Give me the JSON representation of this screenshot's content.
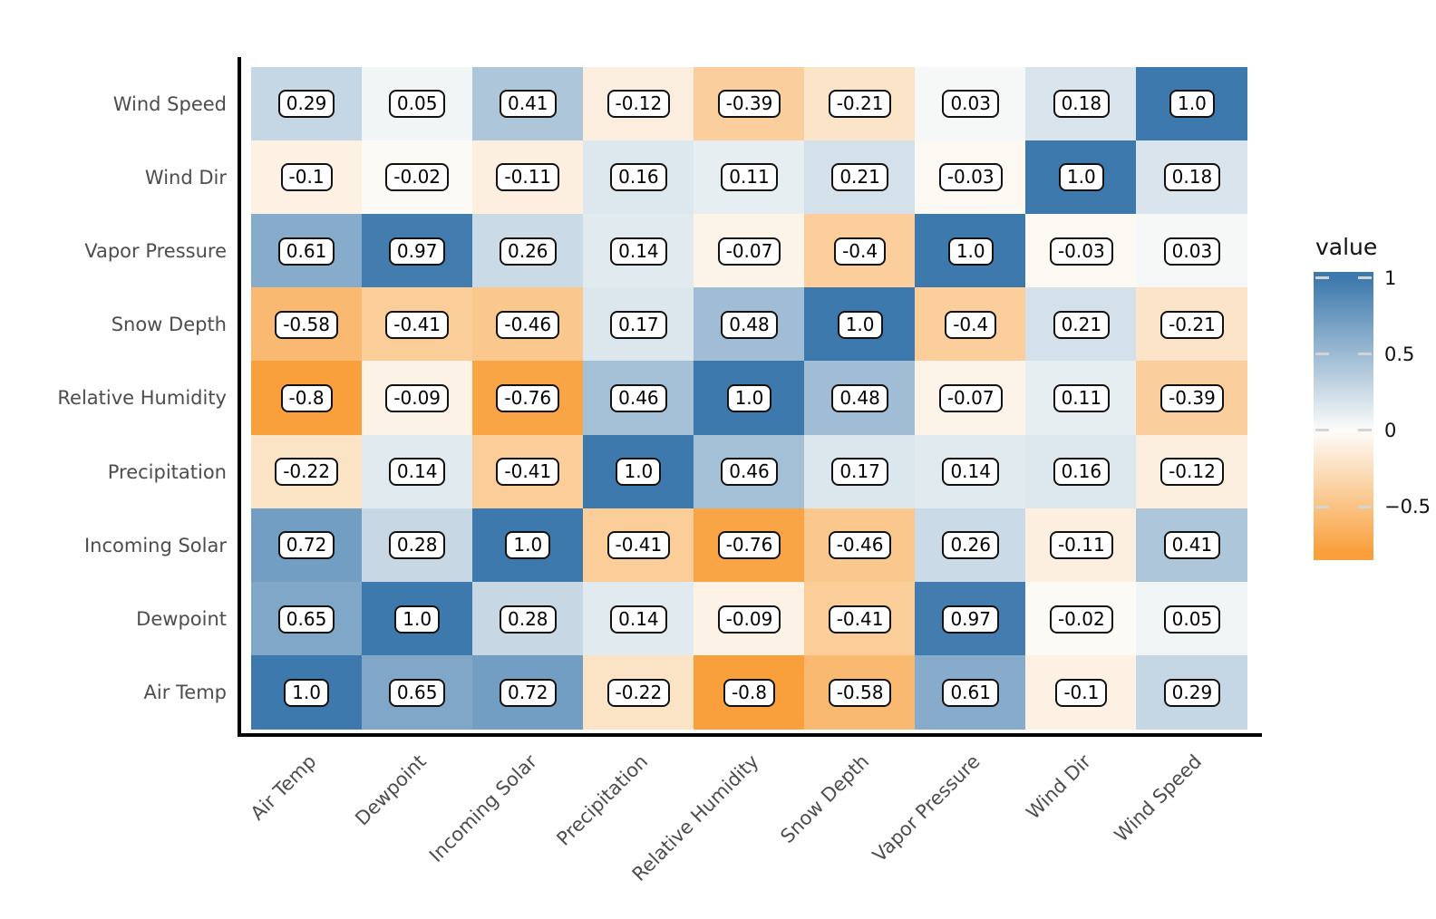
{
  "chart_data": {
    "type": "heatmap",
    "title": "",
    "legend_title": "value",
    "legend_position": "right",
    "grid": false,
    "x_categories": [
      "Air Temp",
      "Dewpoint",
      "Incoming Solar",
      "Precipitation",
      "Relative Humidity",
      "Snow Depth",
      "Vapor Pressure",
      "Wind Dir",
      "Wind Speed"
    ],
    "y_categories": [
      "Wind Speed",
      "Wind Dir",
      "Vapor Pressure",
      "Snow Depth",
      "Relative Humidity",
      "Precipitation",
      "Incoming Solar",
      "Dewpoint",
      "Air Temp"
    ],
    "cell_labels": [
      [
        "0.29",
        "0.05",
        "0.41",
        "-0.12",
        "-0.39",
        "-0.21",
        "0.03",
        "0.18",
        "1.0"
      ],
      [
        "-0.1",
        "-0.02",
        "-0.11",
        "0.16",
        "0.11",
        "0.21",
        "-0.03",
        "1.0",
        "0.18"
      ],
      [
        "0.61",
        "0.97",
        "0.26",
        "0.14",
        "-0.07",
        "-0.4",
        "1.0",
        "-0.03",
        "0.03"
      ],
      [
        "-0.58",
        "-0.41",
        "-0.46",
        "0.17",
        "0.48",
        "1.0",
        "-0.4",
        "0.21",
        "-0.21"
      ],
      [
        "-0.8",
        "-0.09",
        "-0.76",
        "0.46",
        "1.0",
        "0.48",
        "-0.07",
        "0.11",
        "-0.39"
      ],
      [
        "-0.22",
        "0.14",
        "-0.41",
        "1.0",
        "0.46",
        "0.17",
        "0.14",
        "0.16",
        "-0.12"
      ],
      [
        "0.72",
        "0.28",
        "1.0",
        "-0.41",
        "-0.76",
        "-0.46",
        "0.26",
        "-0.11",
        "0.41"
      ],
      [
        "0.65",
        "1.0",
        "0.28",
        "0.14",
        "-0.09",
        "-0.41",
        "0.97",
        "-0.02",
        "0.05"
      ],
      [
        "1.0",
        "0.65",
        "0.72",
        "-0.22",
        "-0.8",
        "-0.58",
        "0.61",
        "-0.1",
        "0.29"
      ]
    ],
    "value_domain": {
      "min": -0.8,
      "max": 1.0
    },
    "colorbar": {
      "title": "value",
      "ticks": [
        {
          "label": "1",
          "value": 1
        },
        {
          "label": "0.5",
          "value": 0.5
        },
        {
          "label": "0",
          "value": 0
        },
        {
          "label": "−0.5",
          "value": -0.5
        }
      ],
      "top_value": 1.04,
      "bottom_value": -0.85
    },
    "colors": {
      "positive_max": "#3d79ad",
      "zero": "#fcfcfa",
      "negative_min": "#f9a03c",
      "axis_text": "#4d4d4d",
      "legend_text": "#111111",
      "cell_label_bg": "#ffffff",
      "cell_label_border": "#111111",
      "axis_line": "#000000",
      "colorbar_tick": "#d4d4d4"
    }
  }
}
